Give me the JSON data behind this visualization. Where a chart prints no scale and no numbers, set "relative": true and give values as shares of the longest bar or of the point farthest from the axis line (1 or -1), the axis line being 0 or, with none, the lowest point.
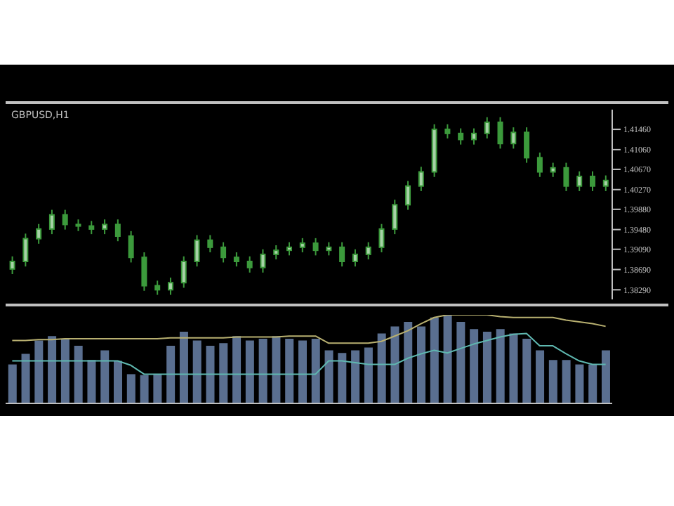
{
  "chart_data": [
    {
      "type": "candlestick",
      "title": "GBPUSD,H1",
      "color": "#3c9a3c",
      "categories": [
        null,
        null,
        null,
        null,
        null,
        null,
        null,
        null,
        null,
        null,
        null,
        null,
        null,
        null,
        null,
        null,
        null,
        null,
        null,
        null,
        null,
        null,
        null,
        null,
        null,
        null,
        null,
        null,
        null,
        null,
        null,
        null,
        null,
        null,
        null,
        null,
        null,
        null,
        null,
        null,
        null,
        null,
        null,
        null,
        null,
        null
      ],
      "ohlc": [
        [
          1.387,
          1.3895,
          1.386,
          1.3885
        ],
        [
          1.3885,
          1.394,
          1.3875,
          1.393
        ],
        [
          1.393,
          1.3959,
          1.392,
          1.3949
        ],
        [
          1.3949,
          1.3987,
          1.3939,
          1.3977
        ],
        [
          1.3977,
          1.3987,
          1.3948,
          1.3958
        ],
        [
          1.3958,
          1.3968,
          1.3945,
          1.3955
        ],
        [
          1.3955,
          1.3965,
          1.3939,
          1.3949
        ],
        [
          1.3949,
          1.3968,
          1.3939,
          1.3958
        ],
        [
          1.3958,
          1.3968,
          1.3925,
          1.3935
        ],
        [
          1.3935,
          1.3945,
          1.3883,
          1.3893
        ],
        [
          1.3893,
          1.3903,
          1.3827,
          1.3837
        ],
        [
          1.3837,
          1.3847,
          1.3819,
          1.3829
        ],
        [
          1.3829,
          1.3853,
          1.3819,
          1.3843
        ],
        [
          1.3843,
          1.3895,
          1.3833,
          1.3885
        ],
        [
          1.3885,
          1.3937,
          1.3875,
          1.3927
        ],
        [
          1.3927,
          1.3937,
          1.3903,
          1.3913
        ],
        [
          1.3913,
          1.3923,
          1.3883,
          1.3893
        ],
        [
          1.3893,
          1.3903,
          1.3875,
          1.3885
        ],
        [
          1.3885,
          1.3895,
          1.3863,
          1.3873
        ],
        [
          1.3873,
          1.3909,
          1.3863,
          1.3899
        ],
        [
          1.3899,
          1.3917,
          1.3889,
          1.3907
        ],
        [
          1.3907,
          1.3923,
          1.3897,
          1.3913
        ],
        [
          1.3913,
          1.3931,
          1.3903,
          1.3921
        ],
        [
          1.3921,
          1.3931,
          1.3897,
          1.3907
        ],
        [
          1.3907,
          1.3923,
          1.3897,
          1.3913
        ],
        [
          1.3913,
          1.3923,
          1.3875,
          1.3885
        ],
        [
          1.3885,
          1.3909,
          1.3875,
          1.3899
        ],
        [
          1.3899,
          1.3923,
          1.3889,
          1.3913
        ],
        [
          1.3913,
          1.3959,
          1.3903,
          1.3949
        ],
        [
          1.3949,
          1.4007,
          1.3939,
          1.3997
        ],
        [
          1.3997,
          1.4044,
          1.3987,
          1.4034
        ],
        [
          1.4034,
          1.4072,
          1.4024,
          1.4062
        ],
        [
          1.4062,
          1.4156,
          1.4052,
          1.4146
        ],
        [
          1.4146,
          1.4156,
          1.4128,
          1.4138
        ],
        [
          1.4138,
          1.4148,
          1.4116,
          1.4126
        ],
        [
          1.4126,
          1.4148,
          1.4116,
          1.4138
        ],
        [
          1.4138,
          1.417,
          1.4128,
          1.416
        ],
        [
          1.416,
          1.417,
          1.4108,
          1.4118
        ],
        [
          1.4118,
          1.415,
          1.4108,
          1.414
        ],
        [
          1.414,
          1.415,
          1.408,
          1.409
        ],
        [
          1.409,
          1.41,
          1.4052,
          1.4062
        ],
        [
          1.4062,
          1.408,
          1.4052,
          1.407
        ],
        [
          1.407,
          1.408,
          1.4024,
          1.4034
        ],
        [
          1.4034,
          1.4063,
          1.4024,
          1.4053
        ],
        [
          1.4053,
          1.4063,
          1.4024,
          1.4034
        ],
        [
          1.4034,
          1.4055,
          1.4024,
          1.4045
        ]
      ],
      "ylim": [
        1.381,
        1.4185
      ],
      "yticks": [
        {
          "value": 1.3829,
          "label": "1.38290"
        },
        {
          "value": 1.3869,
          "label": "1.38690"
        },
        {
          "value": 1.3909,
          "label": "1.39090"
        },
        {
          "value": 1.3948,
          "label": "1.39480"
        },
        {
          "value": 1.3988,
          "label": "1.39880"
        },
        {
          "value": 1.4027,
          "label": "1.40270"
        },
        {
          "value": 1.4067,
          "label": "1.40670"
        },
        {
          "value": 1.4106,
          "label": "1.41060"
        },
        {
          "value": 1.4146,
          "label": "1.41460"
        }
      ],
      "grid": false,
      "legend": false
    },
    {
      "type": "bar",
      "relative": true,
      "legend": false,
      "grid": false,
      "categories": [
        null,
        null,
        null,
        null,
        null,
        null,
        null,
        null,
        null,
        null,
        null,
        null,
        null,
        null,
        null,
        null,
        null,
        null,
        null,
        null,
        null,
        null,
        null,
        null,
        null,
        null,
        null,
        null,
        null,
        null,
        null,
        null,
        null,
        null,
        null,
        null,
        null,
        null,
        null,
        null,
        null,
        null,
        null,
        null,
        null,
        null
      ],
      "series": [
        {
          "type": "bar",
          "color": "#5a6f90",
          "values": [
            0.44,
            0.56,
            0.71,
            0.76,
            0.73,
            0.65,
            0.49,
            0.6,
            0.48,
            0.33,
            0.32,
            0.33,
            0.65,
            0.81,
            0.71,
            0.65,
            0.68,
            0.76,
            0.71,
            0.73,
            0.76,
            0.73,
            0.71,
            0.73,
            0.6,
            0.57,
            0.6,
            0.63,
            0.79,
            0.87,
            0.92,
            0.87,
            0.97,
            1,
            0.92,
            0.84,
            0.81,
            0.84,
            0.79,
            0.73,
            0.6,
            0.49,
            0.49,
            0.44,
            0.44,
            0.6
          ]
        },
        {
          "type": "line",
          "color": "#b8b070",
          "values": [
            0.71,
            0.71,
            0.72,
            0.72,
            0.73,
            0.73,
            0.73,
            0.73,
            0.73,
            0.73,
            0.73,
            0.73,
            0.74,
            0.74,
            0.74,
            0.74,
            0.74,
            0.75,
            0.75,
            0.75,
            0.75,
            0.76,
            0.76,
            0.76,
            0.68,
            0.68,
            0.68,
            0.68,
            0.7,
            0.76,
            0.82,
            0.9,
            0.97,
            1,
            1,
            1,
            1,
            0.98,
            0.97,
            0.97,
            0.97,
            0.97,
            0.94,
            0.92,
            0.9,
            0.87
          ]
        },
        {
          "type": "line",
          "color": "#5fb8b0",
          "values": [
            0.48,
            0.48,
            0.48,
            0.48,
            0.48,
            0.48,
            0.48,
            0.48,
            0.48,
            0.43,
            0.33,
            0.33,
            0.33,
            0.33,
            0.33,
            0.33,
            0.33,
            0.33,
            0.33,
            0.33,
            0.33,
            0.33,
            0.33,
            0.33,
            0.48,
            0.48,
            0.46,
            0.44,
            0.44,
            0.44,
            0.51,
            0.56,
            0.6,
            0.57,
            0.62,
            0.67,
            0.71,
            0.75,
            0.78,
            0.79,
            0.65,
            0.65,
            0.56,
            0.48,
            0.44,
            0.44
          ]
        }
      ]
    }
  ]
}
